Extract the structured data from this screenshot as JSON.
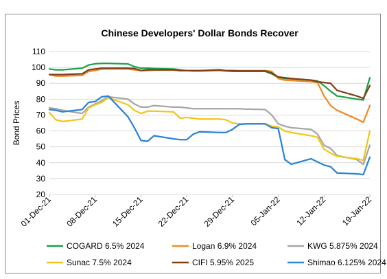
{
  "chart_data": {
    "type": "line",
    "title": "Chinese Developers' Dollar Bonds Recover",
    "xlabel": "",
    "ylabel": "Bond Prices",
    "ylim": [
      20,
      110
    ],
    "yticks": [
      20,
      30,
      40,
      50,
      60,
      70,
      80,
      90,
      100,
      110
    ],
    "xlim": [
      "2021-12-01",
      "2022-01-19"
    ],
    "xticks": [
      {
        "date": "2021-12-01",
        "label": "01-Dec-21"
      },
      {
        "date": "2021-12-08",
        "label": "08-Dec-21"
      },
      {
        "date": "2021-12-15",
        "label": "15-Dec-21"
      },
      {
        "date": "2021-12-22",
        "label": "22-Dec-21"
      },
      {
        "date": "2021-12-29",
        "label": "29-Dec-21"
      },
      {
        "date": "2022-01-05",
        "label": "05-Jan-22"
      },
      {
        "date": "2022-01-12",
        "label": "12-Jan-22"
      },
      {
        "date": "2022-01-19",
        "label": "19-Jan-22"
      }
    ],
    "grid": "horizontal",
    "legend_position": "bottom",
    "series": [
      {
        "name": "COGARD 6.5% 2024",
        "color": "#1aa14a",
        "points": [
          [
            "2021-12-01",
            99
          ],
          [
            "2021-12-02",
            98.5
          ],
          [
            "2021-12-03",
            98.5
          ],
          [
            "2021-12-06",
            99.5
          ],
          [
            "2021-12-07",
            101.5
          ],
          [
            "2021-12-08",
            102.3
          ],
          [
            "2021-12-09",
            102.5
          ],
          [
            "2021-12-10",
            102.5
          ],
          [
            "2021-12-13",
            102.2
          ],
          [
            "2021-12-14",
            100.5
          ],
          [
            "2021-12-15",
            99.5
          ],
          [
            "2021-12-16",
            99.5
          ],
          [
            "2021-12-17",
            99.3
          ],
          [
            "2021-12-20",
            99
          ],
          [
            "2021-12-21",
            98.5
          ],
          [
            "2021-12-22",
            98
          ],
          [
            "2021-12-23",
            97.8
          ],
          [
            "2021-12-24",
            97.8
          ],
          [
            "2021-12-27",
            98
          ],
          [
            "2021-12-28",
            97.8
          ],
          [
            "2021-12-29",
            97.5
          ],
          [
            "2021-12-30",
            97.5
          ],
          [
            "2021-12-31",
            97.5
          ],
          [
            "2022-01-03",
            97.5
          ],
          [
            "2022-01-04",
            96
          ],
          [
            "2022-01-05",
            93.5
          ],
          [
            "2022-01-06",
            93
          ],
          [
            "2022-01-07",
            92.8
          ],
          [
            "2022-01-10",
            92
          ],
          [
            "2022-01-11",
            91.5
          ],
          [
            "2022-01-12",
            88.5
          ],
          [
            "2022-01-13",
            85
          ],
          [
            "2022-01-14",
            82
          ],
          [
            "2022-01-17",
            80
          ],
          [
            "2022-01-18",
            79.5
          ],
          [
            "2022-01-19",
            93.5
          ]
        ]
      },
      {
        "name": "Logan 6.9% 2024",
        "color": "#ee8b24",
        "points": [
          [
            "2021-12-01",
            95.5
          ],
          [
            "2021-12-02",
            94.5
          ],
          [
            "2021-12-03",
            94.5
          ],
          [
            "2021-12-06",
            95
          ],
          [
            "2021-12-07",
            97.5
          ],
          [
            "2021-12-08",
            98
          ],
          [
            "2021-12-09",
            99
          ],
          [
            "2021-12-10",
            99
          ],
          [
            "2021-12-13",
            99
          ],
          [
            "2021-12-14",
            98.5
          ],
          [
            "2021-12-15",
            98
          ],
          [
            "2021-12-16",
            98
          ],
          [
            "2021-12-17",
            98.3
          ],
          [
            "2021-12-20",
            98.3
          ],
          [
            "2021-12-21",
            98
          ],
          [
            "2021-12-22",
            98
          ],
          [
            "2021-12-23",
            98
          ],
          [
            "2021-12-24",
            98
          ],
          [
            "2021-12-27",
            98
          ],
          [
            "2021-12-28",
            98
          ],
          [
            "2021-12-29",
            98
          ],
          [
            "2021-12-30",
            98
          ],
          [
            "2021-12-31",
            98
          ],
          [
            "2022-01-03",
            98
          ],
          [
            "2022-01-04",
            97.5
          ],
          [
            "2022-01-05",
            93
          ],
          [
            "2022-01-06",
            92
          ],
          [
            "2022-01-07",
            91.8
          ],
          [
            "2022-01-10",
            91
          ],
          [
            "2022-01-11",
            90.5
          ],
          [
            "2022-01-12",
            82
          ],
          [
            "2022-01-13",
            76
          ],
          [
            "2022-01-14",
            73
          ],
          [
            "2022-01-17",
            67.5
          ],
          [
            "2022-01-18",
            65.5
          ],
          [
            "2022-01-19",
            76
          ]
        ]
      },
      {
        "name": "KWG 5.875% 2024",
        "color": "#a6a6a6",
        "points": [
          [
            "2021-12-01",
            74.5
          ],
          [
            "2021-12-02",
            74
          ],
          [
            "2021-12-03",
            73
          ],
          [
            "2021-12-06",
            71
          ],
          [
            "2021-12-07",
            75
          ],
          [
            "2021-12-08",
            77
          ],
          [
            "2021-12-09",
            79
          ],
          [
            "2021-12-10",
            81.5
          ],
          [
            "2021-12-13",
            80
          ],
          [
            "2021-12-14",
            77
          ],
          [
            "2021-12-15",
            75
          ],
          [
            "2021-12-16",
            75
          ],
          [
            "2021-12-17",
            76
          ],
          [
            "2021-12-20",
            75
          ],
          [
            "2021-12-21",
            75
          ],
          [
            "2021-12-22",
            74.5
          ],
          [
            "2021-12-23",
            74
          ],
          [
            "2021-12-24",
            74
          ],
          [
            "2021-12-27",
            74
          ],
          [
            "2021-12-28",
            74
          ],
          [
            "2021-12-29",
            74
          ],
          [
            "2021-12-30",
            74
          ],
          [
            "2021-12-31",
            73.8
          ],
          [
            "2022-01-03",
            73.5
          ],
          [
            "2022-01-04",
            70
          ],
          [
            "2022-01-05",
            64.5
          ],
          [
            "2022-01-06",
            63
          ],
          [
            "2022-01-07",
            62
          ],
          [
            "2022-01-10",
            61
          ],
          [
            "2022-01-11",
            58
          ],
          [
            "2022-01-12",
            51
          ],
          [
            "2022-01-13",
            49
          ],
          [
            "2022-01-14",
            44.5
          ],
          [
            "2022-01-17",
            42
          ],
          [
            "2022-01-18",
            39
          ],
          [
            "2022-01-19",
            51
          ]
        ]
      },
      {
        "name": "Sunac 7.5% 2024",
        "color": "#f4c518",
        "points": [
          [
            "2021-12-01",
            71.5
          ],
          [
            "2021-12-02",
            67
          ],
          [
            "2021-12-03",
            66
          ],
          [
            "2021-12-06",
            67.5
          ],
          [
            "2021-12-07",
            74.5
          ],
          [
            "2021-12-08",
            76.5
          ],
          [
            "2021-12-09",
            78
          ],
          [
            "2021-12-10",
            81
          ],
          [
            "2021-12-13",
            76.5
          ],
          [
            "2021-12-14",
            73
          ],
          [
            "2021-12-15",
            71
          ],
          [
            "2021-12-16",
            72.5
          ],
          [
            "2021-12-17",
            72.5
          ],
          [
            "2021-12-20",
            72
          ],
          [
            "2021-12-21",
            68
          ],
          [
            "2021-12-22",
            68.5
          ],
          [
            "2021-12-23",
            68
          ],
          [
            "2021-12-24",
            67.5
          ],
          [
            "2021-12-27",
            67.5
          ],
          [
            "2021-12-28",
            67
          ],
          [
            "2021-12-29",
            65
          ],
          [
            "2021-12-30",
            64.5
          ],
          [
            "2021-12-31",
            64.5
          ],
          [
            "2022-01-03",
            64.5
          ],
          [
            "2022-01-04",
            63
          ],
          [
            "2022-01-05",
            62.5
          ],
          [
            "2022-01-06",
            60
          ],
          [
            "2022-01-07",
            59
          ],
          [
            "2022-01-10",
            57
          ],
          [
            "2022-01-11",
            56
          ],
          [
            "2022-01-12",
            48.5
          ],
          [
            "2022-01-13",
            46
          ],
          [
            "2022-01-14",
            44
          ],
          [
            "2022-01-17",
            42.5
          ],
          [
            "2022-01-18",
            41.5
          ],
          [
            "2022-01-19",
            60
          ]
        ]
      },
      {
        "name": "CIFI 5.95% 2025",
        "color": "#7f3f17",
        "points": [
          [
            "2021-12-01",
            95.5
          ],
          [
            "2021-12-02",
            95.5
          ],
          [
            "2021-12-03",
            95.5
          ],
          [
            "2021-12-06",
            96
          ],
          [
            "2021-12-07",
            98.5
          ],
          [
            "2021-12-08",
            99
          ],
          [
            "2021-12-09",
            99.5
          ],
          [
            "2021-12-10",
            99.5
          ],
          [
            "2021-12-13",
            99.5
          ],
          [
            "2021-12-14",
            99.3
          ],
          [
            "2021-12-15",
            98
          ],
          [
            "2021-12-16",
            98.5
          ],
          [
            "2021-12-17",
            98.5
          ],
          [
            "2021-12-20",
            98.5
          ],
          [
            "2021-12-21",
            98
          ],
          [
            "2021-12-22",
            98
          ],
          [
            "2021-12-23",
            98
          ],
          [
            "2021-12-24",
            98
          ],
          [
            "2021-12-27",
            98.5
          ],
          [
            "2021-12-28",
            98
          ],
          [
            "2021-12-29",
            98
          ],
          [
            "2021-12-30",
            97.8
          ],
          [
            "2021-12-31",
            97.8
          ],
          [
            "2022-01-03",
            97.8
          ],
          [
            "2022-01-04",
            96.5
          ],
          [
            "2022-01-05",
            94
          ],
          [
            "2022-01-06",
            93.5
          ],
          [
            "2022-01-07",
            93
          ],
          [
            "2022-01-10",
            92
          ],
          [
            "2022-01-11",
            91
          ],
          [
            "2022-01-12",
            90.5
          ],
          [
            "2022-01-13",
            90
          ],
          [
            "2022-01-14",
            85.5
          ],
          [
            "2022-01-17",
            82
          ],
          [
            "2022-01-18",
            80.5
          ],
          [
            "2022-01-19",
            88.5
          ]
        ]
      },
      {
        "name": "Shimao 6.125% 2024",
        "color": "#2b84d6",
        "points": [
          [
            "2021-12-01",
            73.5
          ],
          [
            "2021-12-02",
            73
          ],
          [
            "2021-12-03",
            72
          ],
          [
            "2021-12-06",
            73.5
          ],
          [
            "2021-12-07",
            78
          ],
          [
            "2021-12-08",
            78.5
          ],
          [
            "2021-12-09",
            81.5
          ],
          [
            "2021-12-10",
            82
          ],
          [
            "2021-12-13",
            69
          ],
          [
            "2021-12-14",
            62
          ],
          [
            "2021-12-15",
            54
          ],
          [
            "2021-12-16",
            53.5
          ],
          [
            "2021-12-17",
            57
          ],
          [
            "2021-12-20",
            55
          ],
          [
            "2021-12-21",
            54.5
          ],
          [
            "2021-12-22",
            54.5
          ],
          [
            "2021-12-23",
            58
          ],
          [
            "2021-12-24",
            59.5
          ],
          [
            "2021-12-27",
            59
          ],
          [
            "2021-12-28",
            59
          ],
          [
            "2021-12-29",
            61
          ],
          [
            "2021-12-30",
            64
          ],
          [
            "2021-12-31",
            64.5
          ],
          [
            "2022-01-03",
            64.5
          ],
          [
            "2022-01-04",
            62
          ],
          [
            "2022-01-05",
            61.5
          ],
          [
            "2022-01-06",
            42
          ],
          [
            "2022-01-07",
            39
          ],
          [
            "2022-01-10",
            42.5
          ],
          [
            "2022-01-11",
            40.5
          ],
          [
            "2022-01-12",
            38.5
          ],
          [
            "2022-01-13",
            37.5
          ],
          [
            "2022-01-14",
            33.5
          ],
          [
            "2022-01-17",
            33
          ],
          [
            "2022-01-18",
            32.5
          ],
          [
            "2022-01-19",
            43.5
          ]
        ]
      }
    ]
  }
}
